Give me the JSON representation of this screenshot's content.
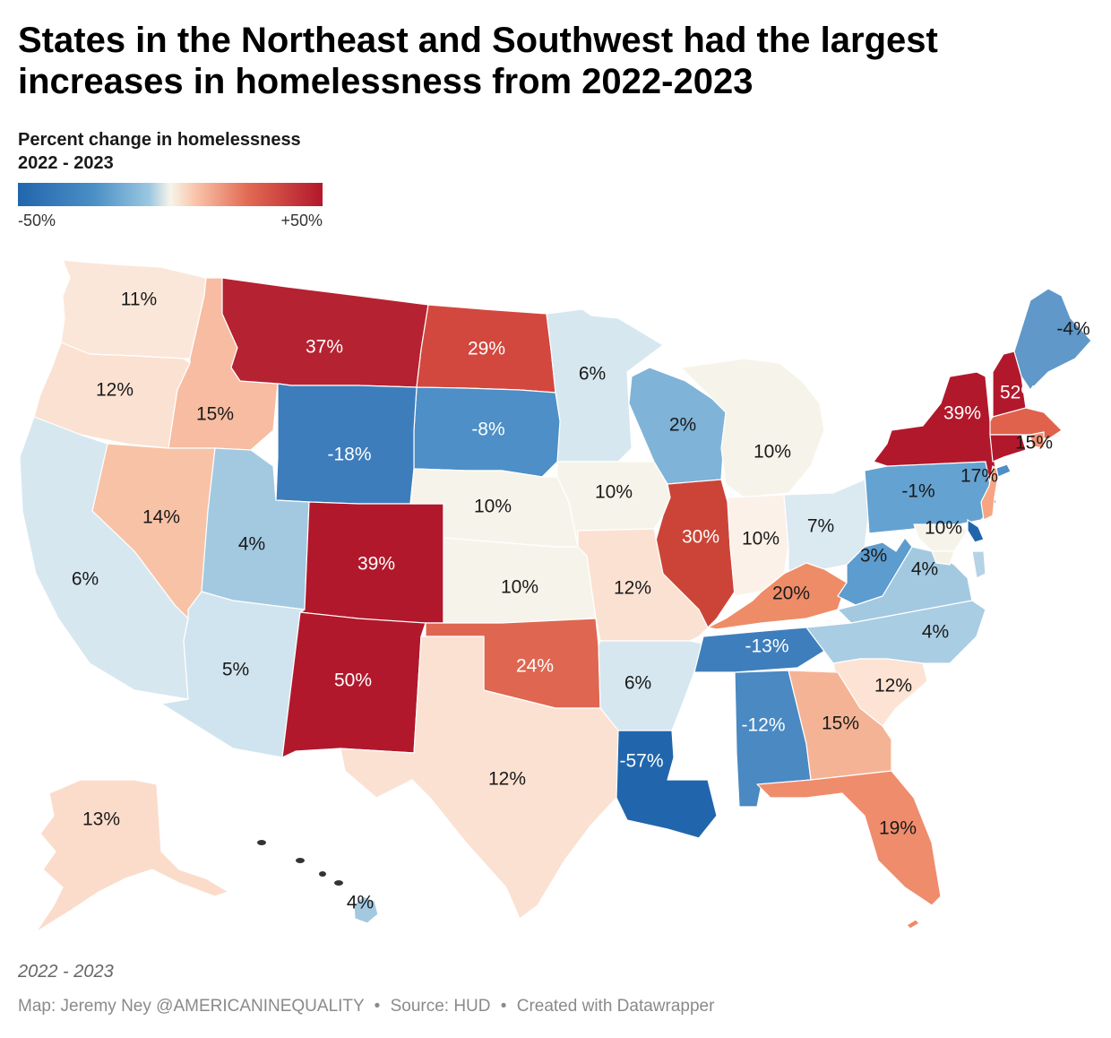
{
  "header": {
    "title": "States in the Northeast and Southwest had the largest increases in homelessness from 2022-2023"
  },
  "legend": {
    "title": "Percent change in homelessness 2022 - 2023",
    "min_label": "-50%",
    "max_label": "+50%",
    "colors": [
      "#2166ac",
      "#4b8fc6",
      "#9ac7e0",
      "#f7f4e9",
      "#f9c6ac",
      "#e36c55",
      "#b2182b"
    ]
  },
  "map": {
    "value_range": [
      -50,
      50
    ],
    "states": [
      {
        "label": "11%",
        "value": 11,
        "fill": "#fbe7da"
      },
      {
        "label": "12%",
        "value": 12,
        "fill": "#fbe1d2"
      },
      {
        "label": "15%",
        "value": 15,
        "fill": "#f7bca1"
      },
      {
        "label": "37%",
        "value": 37,
        "fill": "#b52231"
      },
      {
        "label": "29%",
        "value": 29,
        "fill": "#d2483e"
      },
      {
        "label": "6%",
        "value": 6,
        "fill": "#d6e7f0"
      },
      {
        "label": "-8%",
        "value": -8,
        "fill": "#4d8fc6"
      },
      {
        "label": "-18%",
        "value": -18,
        "fill": "#3d7dbc"
      },
      {
        "label": "14%",
        "value": 14,
        "fill": "#f8c2a6"
      },
      {
        "label": "4%",
        "value": 4,
        "fill": "#a3c9e1"
      },
      {
        "label": "6%",
        "value": 6,
        "fill": "#d6e7f0"
      },
      {
        "label": "39%",
        "value": 39,
        "fill": "#b2182b"
      },
      {
        "label": "10%",
        "value": 10,
        "fill": "#f6f4ea"
      },
      {
        "label": "10%",
        "value": 10,
        "fill": "#f6f4ea"
      },
      {
        "label": "10%",
        "value": 10,
        "fill": "#f6f4ea"
      },
      {
        "label": "2%",
        "value": 2,
        "fill": "#7fb3d7"
      },
      {
        "label": "10%",
        "value": 10,
        "fill": "#f6f4ea"
      },
      {
        "label": "30%",
        "value": 30,
        "fill": "#cc4437"
      },
      {
        "label": "10%",
        "value": 10,
        "fill": "#fcf1e8"
      },
      {
        "label": "7%",
        "value": 7,
        "fill": "#dbe9f1"
      },
      {
        "label": "12%",
        "value": 12,
        "fill": "#fbe1d2"
      },
      {
        "label": "5%",
        "value": 5,
        "fill": "#d0e4ef"
      },
      {
        "label": "50%",
        "value": 50,
        "fill": "#b2182b"
      },
      {
        "label": "24%",
        "value": 24,
        "fill": "#df6650"
      },
      {
        "label": "6%",
        "value": 6,
        "fill": "#d6e7f0"
      },
      {
        "label": "12%",
        "value": 12,
        "fill": "#fbe1d2"
      },
      {
        "label": "-57%",
        "value": -57,
        "fill": "#2166ac"
      },
      {
        "label": "-12%",
        "value": -12,
        "fill": "#4a89c2"
      },
      {
        "label": "-13%",
        "value": -13,
        "fill": "#3f7ebc"
      },
      {
        "label": "20%",
        "value": 20,
        "fill": "#ee8c68"
      },
      {
        "label": "3%",
        "value": 3,
        "fill": "#5d9cce"
      },
      {
        "label": "4%",
        "value": 4,
        "fill": "#a3c9e1"
      },
      {
        "label": "4%",
        "value": 4,
        "fill": "#a9cde3"
      },
      {
        "label": "12%",
        "value": 12,
        "fill": "#fce3d3"
      },
      {
        "label": "15%",
        "value": 15,
        "fill": "#f5b395"
      },
      {
        "label": "19%",
        "value": 19,
        "fill": "#ef8c6c"
      },
      {
        "label": "-1%",
        "value": -1,
        "fill": "#64a2d1"
      },
      {
        "label": "39%",
        "value": 39,
        "fill": "#b2182b"
      },
      {
        "label": "52%",
        "value": 52,
        "fill": "#b2182b"
      },
      {
        "label": "-4%",
        "value": -4,
        "fill": "#5f98c9"
      },
      {
        "label": "15%",
        "value": 15,
        "fill": "#e0624c"
      },
      {
        "label": "17%",
        "value": 17,
        "fill": "#b2182b"
      },
      {
        "label": "10%",
        "value": 10,
        "fill": "#f6f4ea"
      },
      {
        "label": "13%",
        "value": 13,
        "fill": "#fbdccb"
      },
      {
        "label": "4%",
        "value": 4,
        "fill": "#a3c9e1"
      }
    ],
    "small_states": [
      {
        "fill": "#f7a482"
      },
      {
        "fill": "#2166ac"
      },
      {
        "fill": "#f19574"
      },
      {
        "fill": "#f4f2e6"
      },
      {
        "fill": "#b4d3e7"
      },
      {
        "fill": "#4d8fc6"
      },
      {
        "fill": "#f08866"
      }
    ]
  },
  "notes": "2022 - 2023",
  "footer": {
    "map_credit": "Map: Jeremy Ney @AMERICANINEQUALITY",
    "source": "Source: HUD",
    "tool": "Created with Datawrapper",
    "separator": "•"
  }
}
